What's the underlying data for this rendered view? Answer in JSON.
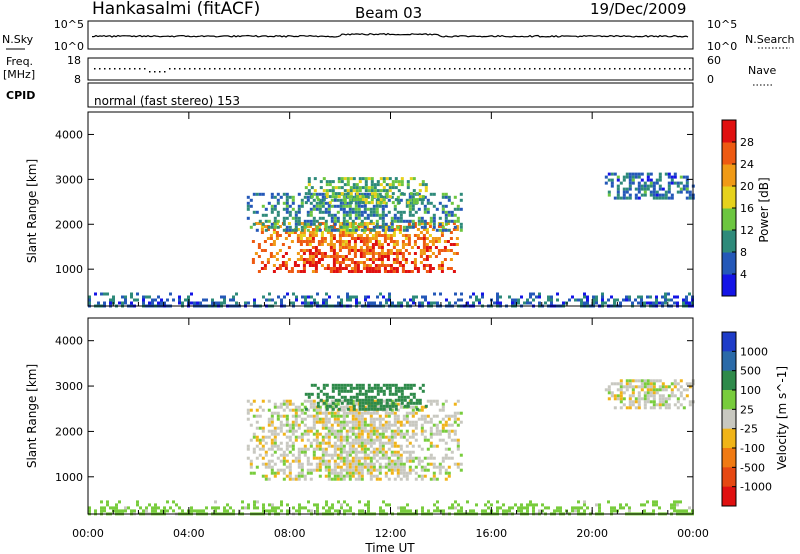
{
  "header": {
    "station": "Hankasalmi (fitACF)",
    "beam": "Beam 03",
    "date": "19/Dec/2009"
  },
  "top_panels": {
    "nsky_label": "N.Sky",
    "nsky_ticks": [
      "10^5",
      "10^0"
    ],
    "nsearch_label": "N.Search",
    "nsearch_ticks": [
      "10^5",
      "10^0"
    ],
    "freq_label_1": "Freq.",
    "freq_label_2": "[MHz]",
    "freq_ticks": [
      "18",
      "8"
    ],
    "nave_label": "Nave",
    "nave_ticks": [
      "60",
      "0"
    ],
    "cpid_label": "CPID",
    "cpid_text": "normal (fast stereo) 153"
  },
  "chart_data": [
    {
      "type": "heatmap",
      "name": "power",
      "ylabel": "Slant Range [km]",
      "ylim": [
        180,
        4500
      ],
      "yticks": [
        "1000",
        "2000",
        "3000",
        "4000"
      ],
      "colorbar_label": "Power [dB]",
      "colorbar_ticks": [
        "4",
        "8",
        "12",
        "16",
        "20",
        "24",
        "28"
      ],
      "colorbar_range": [
        0,
        32
      ],
      "colorbar_colors": [
        "#1414e6",
        "#2458b8",
        "#2e8a7a",
        "#6cc640",
        "#e6d21c",
        "#f09a16",
        "#ee5a12",
        "#e01010"
      ],
      "echo_regions": [
        {
          "label": "main-band",
          "t0": 6.5,
          "t1": 14.6,
          "r0": 950,
          "r1": 2050,
          "level": 21
        },
        {
          "label": "upper-band",
          "t0": 6.3,
          "t1": 14.8,
          "r0": 1850,
          "r1": 2700,
          "level": 9
        },
        {
          "label": "top-band",
          "t0": 8.6,
          "t1": 13.4,
          "r0": 2500,
          "r1": 3050,
          "level": 13
        },
        {
          "label": "late-patch",
          "t0": 20.5,
          "t1": 24.0,
          "r0": 2550,
          "r1": 3150,
          "level": 8
        },
        {
          "label": "near-range",
          "t0": 0.0,
          "t1": 24.0,
          "r0": 180,
          "r1": 480,
          "level": 7
        }
      ]
    },
    {
      "type": "heatmap",
      "name": "velocity",
      "xlabel": "Time UT",
      "ylabel": "Slant Range [km]",
      "xticks": [
        "00:00",
        "04:00",
        "08:00",
        "12:00",
        "16:00",
        "20:00",
        "00:00"
      ],
      "xlim": [
        0,
        24
      ],
      "ylim": [
        180,
        4500
      ],
      "yticks": [
        "1000",
        "2000",
        "3000",
        "4000"
      ],
      "colorbar_label": "Velocity [m s^-1]",
      "colorbar_ticks": [
        "1000",
        "500",
        "100",
        "25",
        "-25",
        "-100",
        "-500",
        "-1000"
      ],
      "colorbar_colors": [
        "#1e3cc8",
        "#2a6aa8",
        "#2e8a4a",
        "#78cc3c",
        "#c8c8c0",
        "#f0b418",
        "#f07a12",
        "#e64812",
        "#e01010"
      ],
      "echo_regions": [
        {
          "label": "ground-scatter",
          "t0": 6.3,
          "t1": 14.8,
          "r0": 950,
          "r1": 2700,
          "level": 0
        },
        {
          "label": "top-band",
          "t0": 8.6,
          "t1": 13.4,
          "r0": 2500,
          "r1": 3050,
          "level": 200
        },
        {
          "label": "late-patch",
          "t0": 20.5,
          "t1": 24.0,
          "r0": 2550,
          "r1": 3150,
          "level": 0
        },
        {
          "label": "near-range",
          "t0": 0.0,
          "t1": 24.0,
          "r0": 180,
          "r1": 480,
          "level": 60
        }
      ]
    }
  ]
}
